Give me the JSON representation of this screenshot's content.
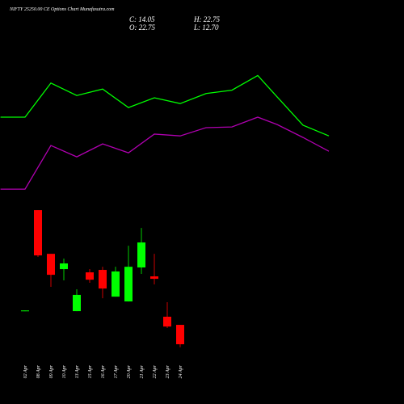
{
  "chart_data": {
    "type": "candlestick",
    "title": "NIFTY 25250.00 CE Options Chart Munafasutra.com",
    "info": [
      "C: 14.05",
      "H: 22.75",
      "O: 22.75",
      "L: 12.70"
    ],
    "categories": [
      "02 Apr",
      "08 Apr",
      "09 Apr",
      "10 Apr",
      "13 Apr",
      "15 Apr",
      "16 Apr",
      "17 Apr",
      "20 Apr",
      "21 Apr",
      "22 Apr",
      "23 Apr",
      "24 Apr"
    ],
    "open": [
      28.9,
      74.2,
      54.6,
      47.75,
      28.9,
      46.3,
      47.4,
      35.4,
      33.25,
      48.5,
      44.5,
      26.4,
      22.75
    ],
    "high": [
      29.2,
      74.2,
      54.6,
      52.5,
      38.7,
      47.75,
      48.8,
      48.8,
      58.25,
      66.2,
      54.6,
      32.9,
      22.75
    ],
    "low": [
      28.9,
      53.2,
      39.8,
      42.7,
      28.9,
      41.6,
      34.7,
      35.4,
      33.25,
      45.6,
      40.9,
      21.3,
      12.7
    ],
    "close": [
      29.2,
      53.9,
      45.2,
      50.3,
      36.2,
      43.0,
      39.05,
      46.7,
      48.8,
      59.7,
      43.4,
      22.0,
      14.05
    ],
    "up_color": "#00ff00",
    "down_color": "#ff0000",
    "ylim": [
      -5.5,
      161.2
    ],
    "lines": [
      {
        "color": "#00ff00",
        "x": [
          -1.9,
          0,
          2,
          4,
          6,
          8,
          10,
          12,
          14,
          16,
          18,
          19.5,
          21.5,
          23.5
        ],
        "values": [
          115.9,
          115.9,
          131.2,
          125.6,
          128.5,
          120.2,
          124.6,
          122.0,
          126.5,
          128.0,
          134.6,
          125.0,
          112.3,
          107.5
        ]
      },
      {
        "color": "#b000b0",
        "x": [
          -1.9,
          0,
          2,
          4,
          6,
          8,
          10,
          12,
          14,
          16,
          18,
          19.5,
          21.5,
          23.5
        ],
        "values": [
          83.6,
          83.6,
          103.2,
          98.1,
          103.9,
          99.9,
          108.3,
          107.5,
          111.2,
          111.5,
          115.9,
          112.6,
          106.8,
          100.6
        ]
      }
    ]
  }
}
